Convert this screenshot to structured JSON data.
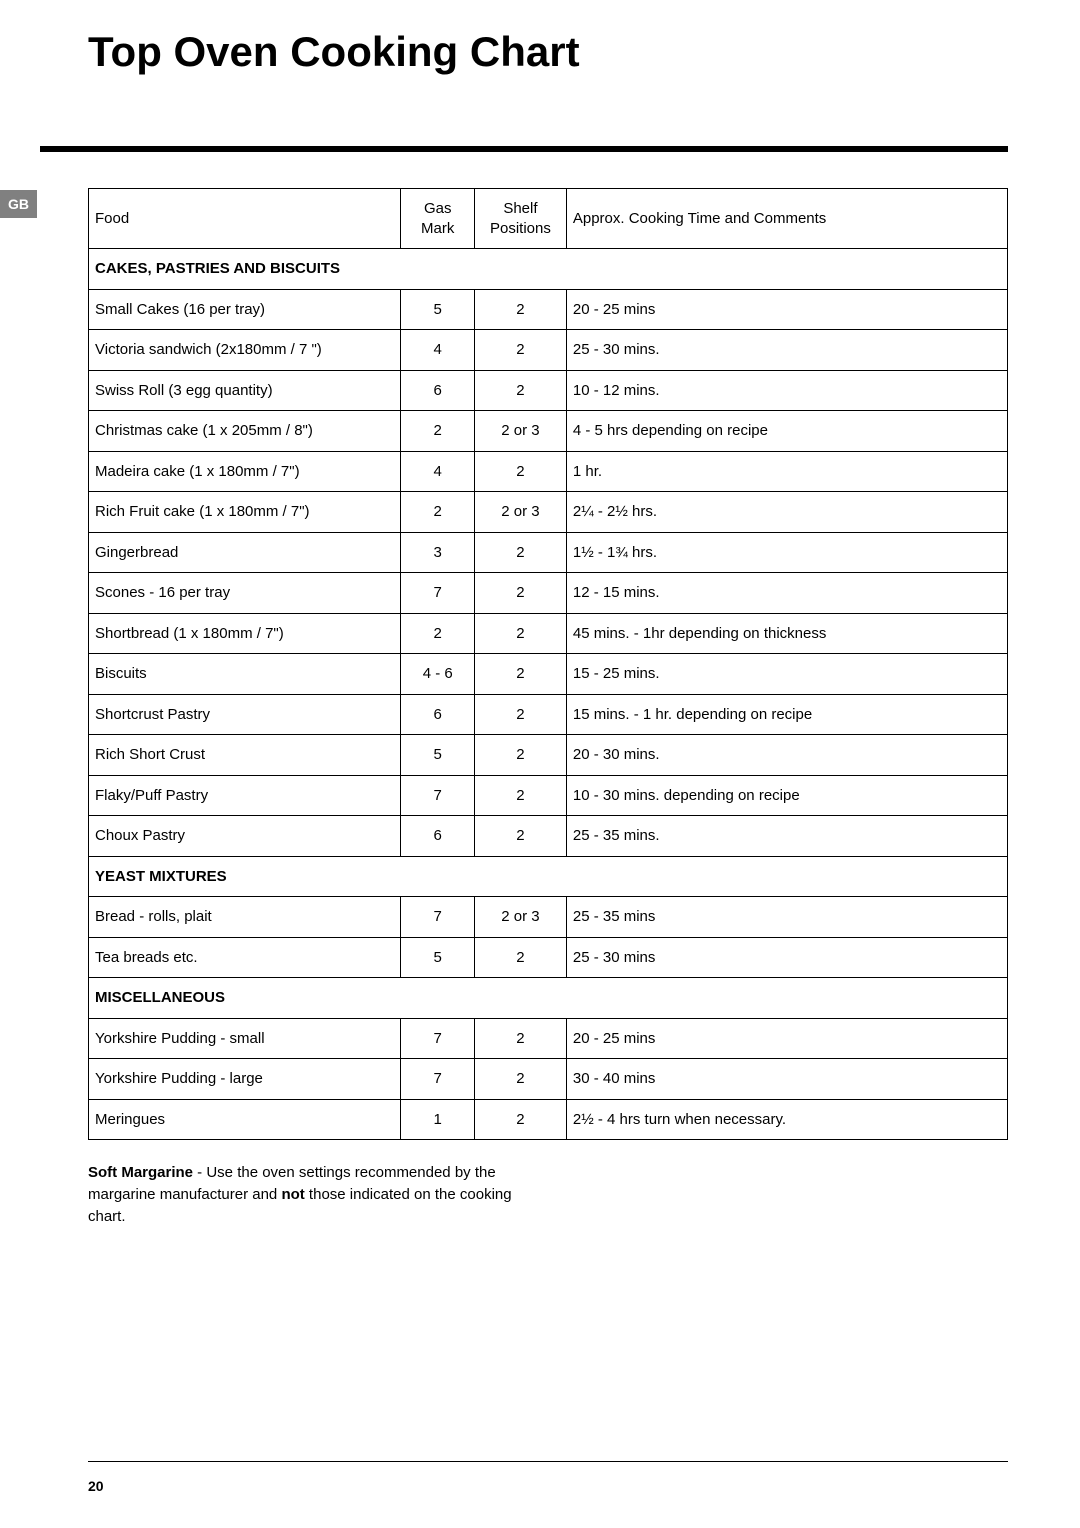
{
  "document": {
    "title": "Top Oven Cooking Chart",
    "locale_tab": "GB",
    "page_number": "20"
  },
  "table": {
    "headers": {
      "food": "Food",
      "gas": "Gas Mark",
      "shelf": "Shelf Positions",
      "time": "Approx. Cooking Time and Comments"
    },
    "sections": [
      {
        "title": "CAKES, PASTRIES AND BISCUITS",
        "rows": [
          {
            "food": "Small Cakes (16 per tray)",
            "gas": "5",
            "shelf": "2",
            "time": "20 - 25 mins"
          },
          {
            "food": "Victoria sandwich (2x180mm / 7 \")",
            "gas": "4",
            "shelf": "2",
            "time": "25 - 30 mins."
          },
          {
            "food": "Swiss Roll (3 egg quantity)",
            "gas": "6",
            "shelf": "2",
            "time": "10 - 12 mins."
          },
          {
            "food": "Christmas cake (1 x 205mm / 8\")",
            "gas": "2",
            "shelf": "2 or 3",
            "time": "4 - 5 hrs depending on recipe"
          },
          {
            "food": "Madeira cake (1 x 180mm / 7\")",
            "gas": "4",
            "shelf": "2",
            "time": "1 hr."
          },
          {
            "food": "Rich Fruit cake  (1 x 180mm / 7\")",
            "gas": "2",
            "shelf": "2 or 3",
            "time": "2¼ - 2½ hrs."
          },
          {
            "food": "Gingerbread",
            "gas": "3",
            "shelf": "2",
            "time": "1½ - 1¾ hrs."
          },
          {
            "food": "Scones - 16 per tray",
            "gas": "7",
            "shelf": "2",
            "time": "12 - 15 mins."
          },
          {
            "food": "Shortbread  (1 x 180mm / 7\")",
            "gas": "2",
            "shelf": "2",
            "time": "45 mins. - 1hr depending on thickness"
          },
          {
            "food": "Biscuits",
            "gas": "4 - 6",
            "shelf": "2",
            "time": "15 - 25 mins."
          },
          {
            "food": "Shortcrust Pastry",
            "gas": "6",
            "shelf": "2",
            "time": "15 mins. - 1 hr. depending on recipe"
          },
          {
            "food": "Rich Short Crust",
            "gas": "5",
            "shelf": "2",
            "time": "20 - 30 mins."
          },
          {
            "food": "Flaky/Puff Pastry",
            "gas": "7",
            "shelf": "2",
            "time": "10 - 30 mins. depending on recipe"
          },
          {
            "food": "Choux Pastry",
            "gas": "6",
            "shelf": "2",
            "time": "25 - 35 mins."
          }
        ]
      },
      {
        "title": "YEAST MIXTURES",
        "rows": [
          {
            "food": "Bread - rolls, plait",
            "gas": "7",
            "shelf": "2 or 3",
            "time": "25 - 35 mins"
          },
          {
            "food": "Tea breads etc.",
            "gas": "5",
            "shelf": "2",
            "time": "25 - 30 mins"
          }
        ]
      },
      {
        "title": "MISCELLANEOUS",
        "rows": [
          {
            "food": "Yorkshire Pudding - small",
            "gas": "7",
            "shelf": "2",
            "time": "20 - 25 mins"
          },
          {
            "food": "Yorkshire Pudding - large",
            "gas": "7",
            "shelf": "2",
            "time": "30 - 40 mins"
          },
          {
            "food": "Meringues",
            "gas": "1",
            "shelf": "2",
            "time": "2½ - 4 hrs turn when necessary."
          }
        ]
      }
    ]
  },
  "notes": {
    "bold_lead": "Soft Margarine",
    "part1": " - Use the oven settings recommended by the margarine manufacturer and ",
    "bold_mid": "not",
    "part2": " those indicated on the cooking chart."
  }
}
